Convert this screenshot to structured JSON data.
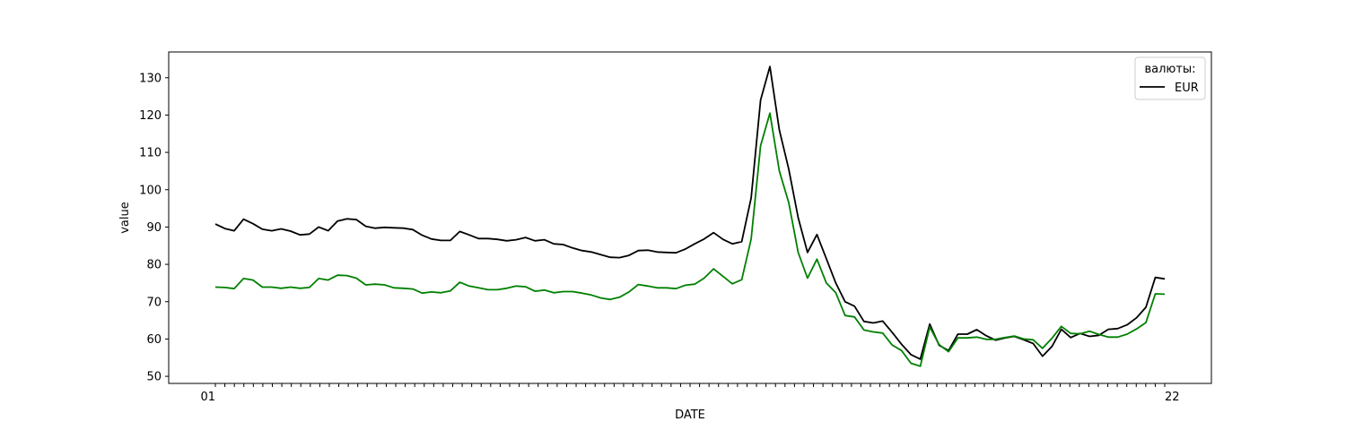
{
  "chart_data": {
    "type": "line",
    "xlabel": "DATE",
    "ylabel": "value",
    "ylim": [
      48.1,
      136.9
    ],
    "yticks": [
      50,
      60,
      70,
      80,
      90,
      100,
      110,
      120,
      130
    ],
    "grid": false,
    "legend": {
      "title": "валюты:",
      "placement": "top-right",
      "entries": [
        "EUR"
      ]
    },
    "x_tick_count": 101,
    "first_x_label": "01",
    "last_x_label": "22",
    "series": [
      {
        "name": "EUR",
        "color": "#000000",
        "values": [
          90.8,
          89.6,
          89.0,
          92.1,
          90.9,
          89.4,
          89.0,
          89.5,
          88.9,
          87.9,
          88.1,
          90.0,
          89.0,
          91.6,
          92.2,
          92.0,
          90.2,
          89.7,
          89.9,
          89.8,
          89.7,
          89.3,
          87.8,
          86.8,
          86.4,
          86.4,
          88.8,
          87.9,
          86.9,
          86.9,
          86.7,
          86.3,
          86.6,
          87.2,
          86.3,
          86.6,
          85.5,
          85.3,
          84.4,
          83.7,
          83.3,
          82.6,
          81.9,
          81.8,
          82.4,
          83.7,
          83.8,
          83.3,
          83.2,
          83.1,
          84.1,
          85.5,
          86.8,
          88.5,
          86.7,
          85.5,
          86.1,
          97.8,
          124.0,
          133.0,
          116.0,
          105.5,
          92.5,
          83.2,
          88.0,
          81.5,
          75.0,
          70.0,
          68.8,
          64.7,
          64.3,
          64.8,
          61.8,
          58.6,
          55.8,
          54.6,
          64.0,
          58.3,
          56.9,
          61.3,
          61.3,
          62.5,
          60.9,
          59.7,
          60.3,
          60.7,
          59.8,
          58.8,
          55.4,
          58.0,
          62.6,
          60.4,
          61.5,
          60.7,
          61.0,
          62.6,
          62.8,
          63.8,
          65.7,
          68.5,
          76.5,
          76.1
        ]
      },
      {
        "color": "#008000",
        "values": [
          73.9,
          73.8,
          73.5,
          76.2,
          75.8,
          73.9,
          73.9,
          73.6,
          73.9,
          73.6,
          73.8,
          76.2,
          75.8,
          77.1,
          77.0,
          76.3,
          74.5,
          74.7,
          74.5,
          73.7,
          73.6,
          73.4,
          72.3,
          72.6,
          72.4,
          72.9,
          75.2,
          74.2,
          73.7,
          73.2,
          73.2,
          73.6,
          74.2,
          74.0,
          72.8,
          73.1,
          72.4,
          72.7,
          72.7,
          72.3,
          71.8,
          71.0,
          70.6,
          71.2,
          72.6,
          74.6,
          74.2,
          73.7,
          73.7,
          73.5,
          74.4,
          74.7,
          76.3,
          78.8,
          76.8,
          74.8,
          75.9,
          86.8,
          111.8,
          120.5,
          105.0,
          96.5,
          83.2,
          76.3,
          81.4,
          75.0,
          72.4,
          66.3,
          65.9,
          62.4,
          61.9,
          61.6,
          58.4,
          56.9,
          53.5,
          52.7,
          63.2,
          58.5,
          56.6,
          60.3,
          60.3,
          60.5,
          59.9,
          59.9,
          60.4,
          60.8,
          60.0,
          59.8,
          57.5,
          60.2,
          63.4,
          61.5,
          61.4,
          62.1,
          61.2,
          60.5,
          60.5,
          61.3,
          62.7,
          64.4,
          72.1,
          72.0
        ]
      }
    ]
  }
}
